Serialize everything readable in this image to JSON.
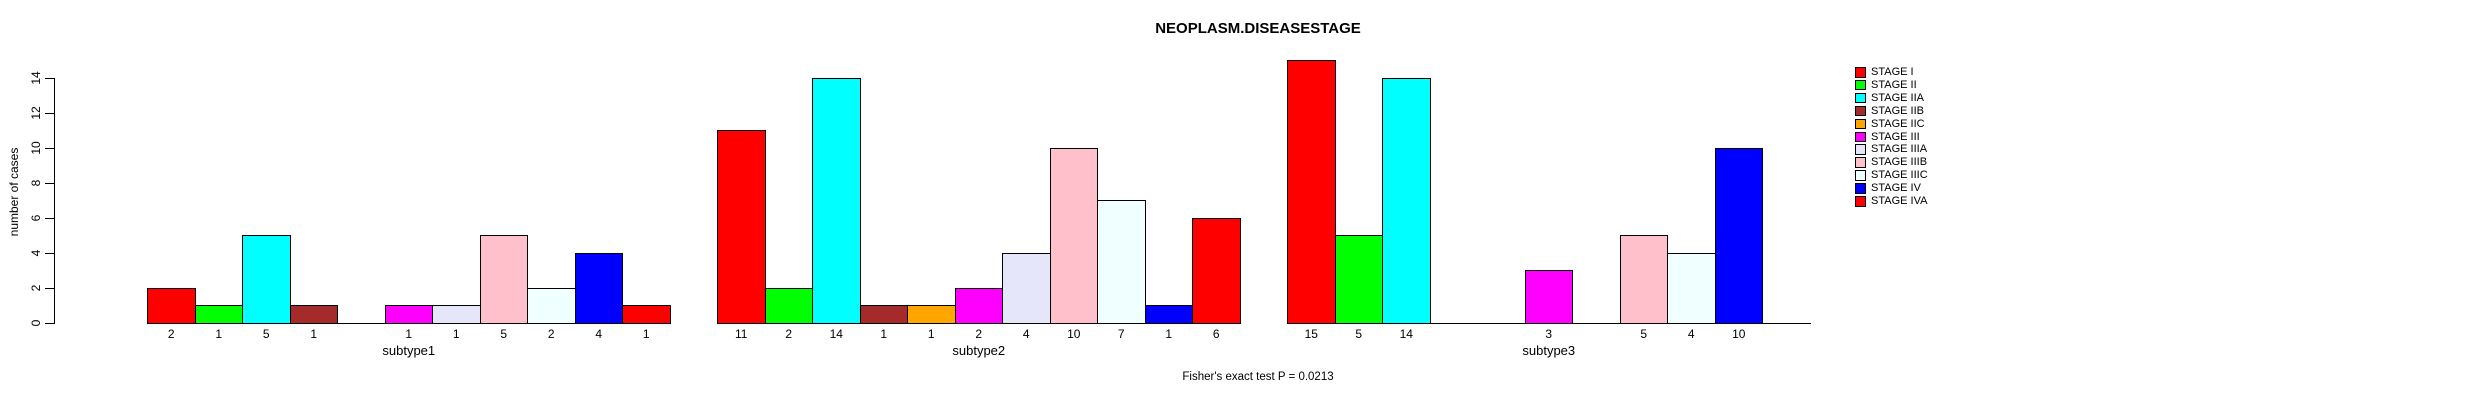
{
  "title": "NEOPLASM.DISEASESTAGE",
  "y_axis": {
    "label": "number of cases",
    "ticks": [
      0,
      2,
      4,
      6,
      8,
      10,
      12,
      14
    ]
  },
  "footnote": "Fisher's exact test P = 0.0213",
  "legend": {
    "position": "right",
    "items": [
      {
        "label": "STAGE I",
        "color": "#FF0000"
      },
      {
        "label": "STAGE II",
        "color": "#00FF00"
      },
      {
        "label": "STAGE IIA",
        "color": "#00FFFF"
      },
      {
        "label": "STAGE IIB",
        "color": "#A52A2A"
      },
      {
        "label": "STAGE IIC",
        "color": "#FFA500"
      },
      {
        "label": "STAGE III",
        "color": "#FF00FF"
      },
      {
        "label": "STAGE IIIA",
        "color": "#E6E6FA"
      },
      {
        "label": "STAGE IIIB",
        "color": "#FFC0CB"
      },
      {
        "label": "STAGE IIIC",
        "color": "#F0FFFF"
      },
      {
        "label": "STAGE IV",
        "color": "#0000FF"
      },
      {
        "label": "STAGE IVA",
        "color": "#FF0000"
      }
    ]
  },
  "chart_data": {
    "type": "bar",
    "title": "NEOPLASM.DISEASESTAGE",
    "xlabel": "",
    "ylabel": "number of cases",
    "ylim": [
      0,
      14
    ],
    "yticks": [
      0,
      2,
      4,
      6,
      8,
      10,
      12,
      14
    ],
    "grid": false,
    "legend_position": "right",
    "bar_value_labels_shown_below_nonzero_bars": true,
    "categories": [
      "subtype1",
      "subtype2",
      "subtype3"
    ],
    "series": [
      {
        "name": "STAGE I",
        "color": "#FF0000",
        "values": [
          2,
          11,
          15
        ]
      },
      {
        "name": "STAGE II",
        "color": "#00FF00",
        "values": [
          1,
          2,
          5
        ]
      },
      {
        "name": "STAGE IIA",
        "color": "#00FFFF",
        "values": [
          5,
          14,
          14
        ]
      },
      {
        "name": "STAGE IIB",
        "color": "#A52A2A",
        "values": [
          1,
          1,
          0
        ]
      },
      {
        "name": "STAGE IIC",
        "color": "#FFA500",
        "values": [
          0,
          1,
          0
        ]
      },
      {
        "name": "STAGE III",
        "color": "#FF00FF",
        "values": [
          1,
          2,
          3
        ]
      },
      {
        "name": "STAGE IIIA",
        "color": "#E6E6FA",
        "values": [
          1,
          4,
          0
        ]
      },
      {
        "name": "STAGE IIIB",
        "color": "#FFC0CB",
        "values": [
          5,
          10,
          5
        ]
      },
      {
        "name": "STAGE IIIC",
        "color": "#F0FFFF",
        "values": [
          2,
          7,
          4
        ]
      },
      {
        "name": "STAGE IV",
        "color": "#0000FF",
        "values": [
          4,
          1,
          10
        ]
      },
      {
        "name": "STAGE IVA",
        "color": "#FF0000",
        "values": [
          1,
          6,
          0
        ]
      }
    ],
    "annotation": "Fisher's exact test P = 0.0213"
  }
}
